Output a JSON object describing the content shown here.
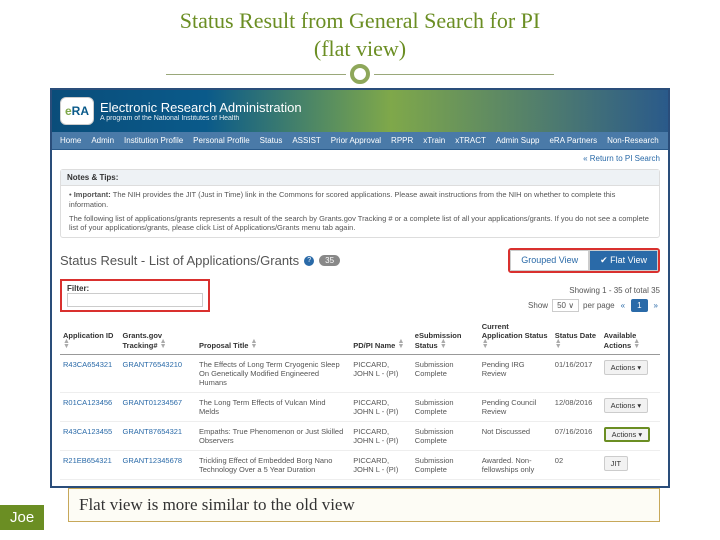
{
  "slide": {
    "title_l1": "Status Result from General Search for PI",
    "title_l2": "(flat view)",
    "caption": "Flat view is more similar to the old view",
    "author": "Joe"
  },
  "header": {
    "badge_e": "e",
    "badge_ra": "RA",
    "title": "Electronic Research Administration",
    "subtitle": "A program of the National Institutes of Health"
  },
  "nav": {
    "items": [
      "Home",
      "Admin",
      "Institution Profile",
      "Personal Profile",
      "Status",
      "ASSIST",
      "Prior Approval",
      "RPPR",
      "xTrain",
      "xTRACT",
      "Admin Supp",
      "eRA Partners",
      "Non-Research"
    ]
  },
  "return_link": "« Return to PI Search",
  "notes": {
    "header": "Notes & Tips:",
    "important_label": "Important:",
    "important_text": "The NIH provides the JIT (Just in Time) link in the Commons for scored applications. Please await instructions from the NIH on whether to complete this information.",
    "body2": "The following list of applications/grants represents a result of the search by Grants.gov Tracking # or a complete list of all your applications/grants. If you do not see a complete list of your applications/grants, please click List of Applications/Grants menu tab again."
  },
  "status": {
    "title": "Status Result - List of Applications/Grants",
    "count": "35",
    "grouped": "Grouped View",
    "flat": "✔ Flat View"
  },
  "filter": {
    "label": "Filter:"
  },
  "pager": {
    "showing": "Showing 1 - 35 of total 35",
    "show": "Show",
    "per_page_count": "50",
    "per_page": "per page",
    "page": "1"
  },
  "columns": [
    "Application ID",
    "Grants.gov Tracking#",
    "Proposal Title",
    "PD/PI Name",
    "eSubmission Status",
    "Current Application Status",
    "Status Date",
    "Available Actions"
  ],
  "rows": [
    {
      "id": "R43CA654321",
      "track": "GRANT76543210",
      "title": "The Effects of Long Term Cryogenic Sleep On Genetically Modified Engineered Humans",
      "pi": "PICCARD, JOHN L - (PI)",
      "esub": "Submission Complete",
      "status": "Pending IRG Review",
      "date": "01/16/2017",
      "action": "Actions ▾",
      "action_style": "grey"
    },
    {
      "id": "R01CA123456",
      "track": "GRANT01234567",
      "title": "The Long Term Effects of Vulcan Mind Melds",
      "pi": "PICCARD, JOHN L - (PI)",
      "esub": "Submission Complete",
      "status": "Pending Council Review",
      "date": "12/08/2016",
      "action": "Actions ▾",
      "action_style": "grey"
    },
    {
      "id": "R43CA123455",
      "track": "GRANT87654321",
      "title": "Empaths: True Phenomenon or Just Skilled Observers",
      "pi": "PICCARD, JOHN L - (PI)",
      "esub": "Submission Complete",
      "status": "Not Discussed",
      "date": "07/16/2016",
      "action": "Actions ▾",
      "action_style": "green"
    },
    {
      "id": "R21EB654321",
      "track": "GRANT12345678",
      "title": "Trickling Effect of Embedded Borg Nano Technology Over a 5 Year Duration",
      "pi": "PICCARD, JOHN L - (PI)",
      "esub": "Submission Complete",
      "status": "Awarded. Non-fellowships only",
      "date": "02",
      "action": "JIT",
      "action_style": "grey"
    }
  ],
  "colors": {
    "accent_green": "#6b8e23",
    "accent_blue": "#2a6aa8",
    "highlight_red": "#d9302e"
  }
}
